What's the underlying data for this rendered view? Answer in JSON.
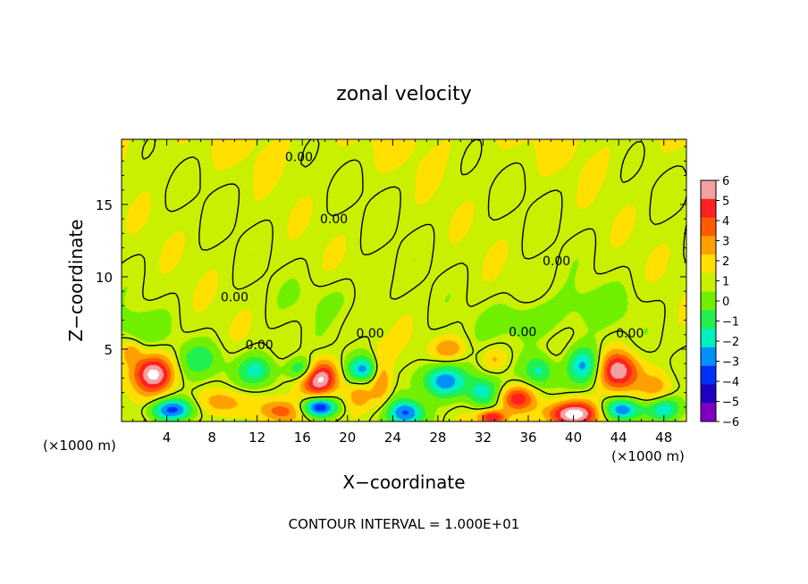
{
  "chart_data": {
    "type": "heatmap",
    "title": "zonal velocity",
    "xlabel": "X−coordinate",
    "ylabel": "Z−coordinate",
    "x_unit": "(×1000 m)",
    "x_unit_right": "(×1000 m)",
    "xlim": [
      0,
      50
    ],
    "ylim": [
      0,
      19.5
    ],
    "xticks": [
      4,
      8,
      12,
      16,
      20,
      24,
      28,
      32,
      36,
      40,
      44,
      48
    ],
    "yticks": [
      5,
      10,
      15
    ],
    "colorbar": {
      "levels": [
        6,
        5,
        4,
        3,
        2,
        1,
        0,
        -1,
        -2,
        -3,
        -4,
        -5,
        -6
      ],
      "level_labels": [
        "6",
        "5",
        "4",
        "3",
        "2",
        "1",
        "0",
        "−1",
        "−2",
        "−3",
        "−4",
        "−5",
        "−6"
      ],
      "colors": [
        "#f5a0a0",
        "#ff2020",
        "#ff5a00",
        "#ffa000",
        "#ffe000",
        "#c8f000",
        "#70f000",
        "#20f050",
        "#00f0c0",
        "#0090ff",
        "#0030ff",
        "#2000c0",
        "#8000c0"
      ]
    },
    "contour_labels": [
      {
        "text": "0.00",
        "x": 15.7,
        "z": 18.3
      },
      {
        "text": "0.00",
        "x": 18.8,
        "z": 14.0
      },
      {
        "text": "0.00",
        "x": 38.5,
        "z": 11.1
      },
      {
        "text": "0.00",
        "x": 10.0,
        "z": 8.6
      },
      {
        "text": "0.00",
        "x": 22.0,
        "z": 6.1
      },
      {
        "text": "0.00",
        "x": 35.5,
        "z": 6.2
      },
      {
        "text": "0.00",
        "x": 45.0,
        "z": 6.1
      },
      {
        "text": "0.00",
        "x": 12.2,
        "z": 5.3
      }
    ],
    "blobs": [
      {
        "x": 2.8,
        "z": 3.3,
        "v": 5.5,
        "rx": 1.8,
        "rz": 1.3
      },
      {
        "x": 17.5,
        "z": 3.0,
        "v": 5.6,
        "rx": 1.7,
        "rz": 1.2
      },
      {
        "x": 44.0,
        "z": 3.5,
        "v": 5.4,
        "rx": 1.8,
        "rz": 1.3
      },
      {
        "x": 35.0,
        "z": 1.6,
        "v": 4.4,
        "rx": 1.6,
        "rz": 0.9
      },
      {
        "x": 40.0,
        "z": 0.5,
        "v": 6.0,
        "rx": 2.5,
        "rz": 0.9
      },
      {
        "x": 32.8,
        "z": 0.3,
        "v": 4.5,
        "rx": 1.2,
        "rz": 0.5
      },
      {
        "x": 9.0,
        "z": 1.3,
        "v": 2.5,
        "rx": 2.2,
        "rz": 1.0
      },
      {
        "x": 14.0,
        "z": 0.7,
        "v": 3.0,
        "rx": 1.8,
        "rz": 0.8
      },
      {
        "x": 21.0,
        "z": 1.8,
        "v": 2.2,
        "rx": 1.3,
        "rz": 1.0
      },
      {
        "x": 23.0,
        "z": 3.0,
        "v": 2.8,
        "rx": 0.9,
        "rz": 1.8
      },
      {
        "x": 29.0,
        "z": 5.0,
        "v": 2.2,
        "rx": 1.5,
        "rz": 0.8
      },
      {
        "x": 33.0,
        "z": 4.3,
        "v": 1.6,
        "rx": 1.2,
        "rz": 0.8
      },
      {
        "x": 47.5,
        "z": 2.2,
        "v": 2.2,
        "rx": 1.5,
        "rz": 1.2
      },
      {
        "x": 0.9,
        "z": 4.8,
        "v": 1.8,
        "rx": 0.8,
        "rz": 0.7
      },
      {
        "x": 4.5,
        "z": 0.8,
        "v": -5.0,
        "rx": 2.0,
        "rz": 0.8
      },
      {
        "x": 12.0,
        "z": 3.5,
        "v": -3.2,
        "rx": 1.8,
        "rz": 1.2
      },
      {
        "x": 16.0,
        "z": 3.6,
        "v": -3.4,
        "rx": 1.3,
        "rz": 0.8
      },
      {
        "x": 17.5,
        "z": 1.0,
        "v": -6.0,
        "rx": 1.5,
        "rz": 0.7
      },
      {
        "x": 21.5,
        "z": 3.6,
        "v": -3.6,
        "rx": 1.6,
        "rz": 0.9
      },
      {
        "x": 25.2,
        "z": 0.6,
        "v": -4.6,
        "rx": 1.6,
        "rz": 0.9
      },
      {
        "x": 28.5,
        "z": 2.8,
        "v": -4.6,
        "rx": 2.0,
        "rz": 1.2
      },
      {
        "x": 32.0,
        "z": 2.0,
        "v": -3.4,
        "rx": 1.5,
        "rz": 1.1
      },
      {
        "x": 37.0,
        "z": 3.5,
        "v": -2.8,
        "rx": 1.3,
        "rz": 1.1
      },
      {
        "x": 41.0,
        "z": 3.8,
        "v": -4.2,
        "rx": 1.6,
        "rz": 1.4
      },
      {
        "x": 44.3,
        "z": 0.8,
        "v": -5.0,
        "rx": 1.8,
        "rz": 0.8
      },
      {
        "x": 48.0,
        "z": 0.9,
        "v": -3.5,
        "rx": 1.5,
        "rz": 0.9
      },
      {
        "x": 7.0,
        "z": 4.3,
        "v": -2.0,
        "rx": 2.0,
        "rz": 1.2
      },
      {
        "x": 36.0,
        "z": 7.0,
        "v": -1.4,
        "rx": 3.5,
        "rz": 1.4
      },
      {
        "x": 1.5,
        "z": 6.5,
        "v": -1.1,
        "rx": 2.5,
        "rz": 1.2
      },
      {
        "x": 42.0,
        "z": 8.0,
        "v": -0.8,
        "rx": 4.0,
        "rz": 1.5
      },
      {
        "x": 19.0,
        "z": 8.5,
        "v": -0.6,
        "rx": 4.0,
        "rz": 1.5
      }
    ]
  },
  "footer": {
    "contour_interval": "CONTOUR INTERVAL = 1.000E+01"
  }
}
